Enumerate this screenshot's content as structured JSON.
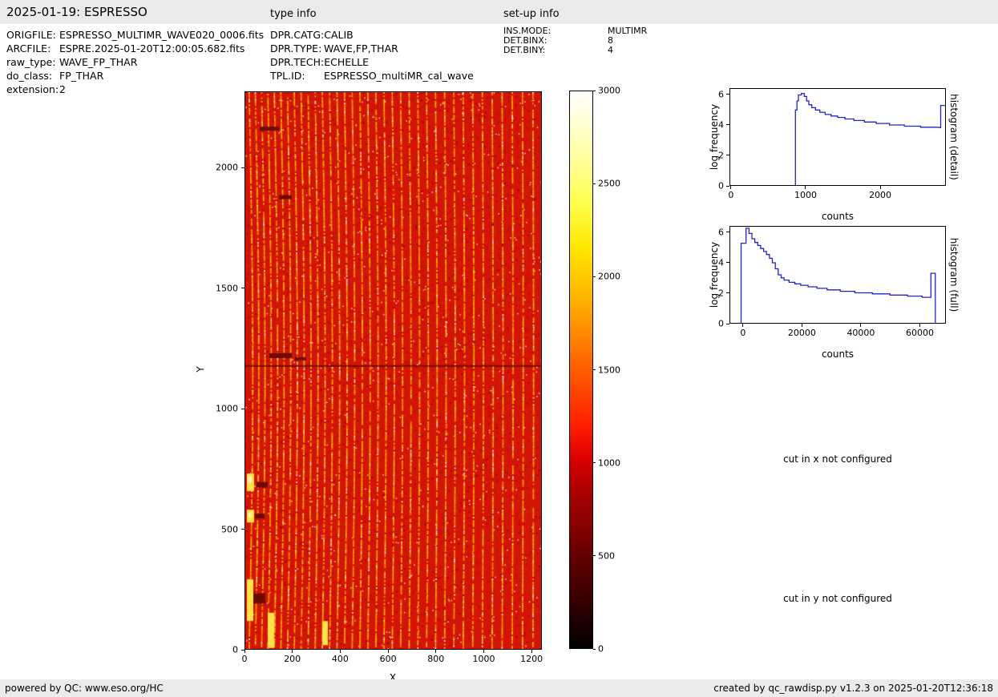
{
  "header": {
    "title": "2025-01-19: ESPRESSO",
    "type_info_label": "type info",
    "setup_info_label": "set-up info"
  },
  "metadata": {
    "file_info": [
      {
        "label": "ORIGFILE:",
        "value": "ESPRESSO_MULTIMR_WAVE020_0006.fits"
      },
      {
        "label": "ARCFILE:",
        "value": "ESPRE.2025-01-20T12:00:05.682.fits"
      },
      {
        "label": "raw_type:",
        "value": "WAVE_FP_THAR"
      },
      {
        "label": "do_class:",
        "value": "FP_THAR"
      },
      {
        "label": "extension:",
        "value": "2"
      }
    ],
    "type_info": [
      {
        "label": "DPR.CATG:",
        "value": "CALIB"
      },
      {
        "label": "DPR.TYPE:",
        "value": "WAVE,FP,THAR"
      },
      {
        "label": "DPR.TECH:",
        "value": "ECHELLE"
      },
      {
        "label": "TPL.ID:",
        "value": "ESPRESSO_multiMR_cal_wave"
      }
    ],
    "setup_info": [
      {
        "label": "INS.MODE:",
        "value": "MULTIMR"
      },
      {
        "label": "DET.BINX:",
        "value": "8"
      },
      {
        "label": "DET.BINY:",
        "value": "4"
      }
    ]
  },
  "messages": {
    "cut_x": "cut in x not configured",
    "cut_y": "cut in y not configured"
  },
  "footer": {
    "left": "powered by QC: www.eso.org/HC",
    "right": "created by qc_rawdisp.py v1.2.3 on 2025-01-20T12:36:18"
  },
  "chart_data": [
    {
      "type": "heatmap",
      "name": "raw-detector-image",
      "description": "ESPRESSO FP/ThAr raw echelle frame: ~38 bright curved vertical orders (yellow/white fringes) on saturated red background, dark bad-column blemishes at left, dark horizontal row near y=1180, hot colormap",
      "xlabel": "X",
      "ylabel": "Y",
      "x_ticks": [
        0,
        200,
        400,
        600,
        800,
        1000,
        1200
      ],
      "y_ticks": [
        0,
        500,
        1000,
        1500,
        2000
      ],
      "x_range": [
        0,
        1243
      ],
      "y_range": [
        0,
        2316
      ],
      "colormap": "hot",
      "colorbar_ticks": [
        0,
        500,
        1000,
        1500,
        2000,
        2500,
        3000
      ],
      "colorbar_range": [
        0,
        3000
      ],
      "base_color": "#d31505",
      "stripe_color": "#ffd800"
    },
    {
      "type": "line",
      "title": "histogram (detail)",
      "xlabel": "counts",
      "ylabel": "log frequency",
      "x_ticks": [
        0,
        1000,
        2000
      ],
      "y_ticks": [
        0,
        2,
        4,
        6
      ],
      "x_range": [
        -20,
        2880
      ],
      "y_range": [
        0,
        6.4
      ],
      "line_color": "#2222cc",
      "series": [
        {
          "name": "log-frequency",
          "points": [
            [
              860,
              0
            ],
            [
              860,
              5.0
            ],
            [
              880,
              5.0
            ],
            [
              880,
              5.6
            ],
            [
              900,
              5.6
            ],
            [
              900,
              6.0
            ],
            [
              940,
              6.0
            ],
            [
              940,
              6.1
            ],
            [
              980,
              6.1
            ],
            [
              980,
              5.9
            ],
            [
              1010,
              5.9
            ],
            [
              1010,
              5.6
            ],
            [
              1040,
              5.6
            ],
            [
              1040,
              5.35
            ],
            [
              1080,
              5.35
            ],
            [
              1080,
              5.15
            ],
            [
              1130,
              5.15
            ],
            [
              1130,
              5.0
            ],
            [
              1190,
              5.0
            ],
            [
              1190,
              4.85
            ],
            [
              1260,
              4.85
            ],
            [
              1260,
              4.7
            ],
            [
              1340,
              4.7
            ],
            [
              1340,
              4.6
            ],
            [
              1430,
              4.6
            ],
            [
              1430,
              4.5
            ],
            [
              1530,
              4.5
            ],
            [
              1530,
              4.4
            ],
            [
              1650,
              4.4
            ],
            [
              1650,
              4.3
            ],
            [
              1790,
              4.3
            ],
            [
              1790,
              4.2
            ],
            [
              1950,
              4.2
            ],
            [
              1950,
              4.1
            ],
            [
              2130,
              4.1
            ],
            [
              2130,
              4.0
            ],
            [
              2330,
              4.0
            ],
            [
              2330,
              3.92
            ],
            [
              2550,
              3.92
            ],
            [
              2550,
              3.85
            ],
            [
              2780,
              3.85
            ],
            [
              2820,
              3.82
            ],
            [
              2820,
              5.3
            ],
            [
              2880,
              5.3
            ]
          ]
        }
      ]
    },
    {
      "type": "line",
      "title": "histogram (full)",
      "xlabel": "counts",
      "ylabel": "log frequency",
      "x_ticks": [
        0,
        20000,
        40000,
        60000
      ],
      "y_ticks": [
        0,
        2,
        4,
        6
      ],
      "x_range": [
        -4600,
        68850
      ],
      "y_range": [
        0,
        6.4
      ],
      "line_color": "#2222cc",
      "series": [
        {
          "name": "log-frequency",
          "points": [
            [
              -900,
              0
            ],
            [
              -900,
              5.3
            ],
            [
              800,
              5.3
            ],
            [
              800,
              6.3
            ],
            [
              1800,
              6.3
            ],
            [
              1800,
              5.95
            ],
            [
              2800,
              5.95
            ],
            [
              2800,
              5.6
            ],
            [
              3800,
              5.6
            ],
            [
              3800,
              5.35
            ],
            [
              4800,
              5.35
            ],
            [
              4800,
              5.15
            ],
            [
              5800,
              5.15
            ],
            [
              5800,
              4.95
            ],
            [
              6800,
              4.95
            ],
            [
              6800,
              4.75
            ],
            [
              7800,
              4.75
            ],
            [
              7800,
              4.55
            ],
            [
              8800,
              4.55
            ],
            [
              8800,
              4.3
            ],
            [
              9800,
              4.3
            ],
            [
              9800,
              4.0
            ],
            [
              10800,
              4.0
            ],
            [
              10800,
              3.6
            ],
            [
              11800,
              3.6
            ],
            [
              11800,
              3.2
            ],
            [
              12800,
              3.2
            ],
            [
              12800,
              3.0
            ],
            [
              13800,
              3.0
            ],
            [
              13800,
              2.85
            ],
            [
              15500,
              2.85
            ],
            [
              15500,
              2.7
            ],
            [
              17500,
              2.7
            ],
            [
              17500,
              2.6
            ],
            [
              19500,
              2.6
            ],
            [
              19500,
              2.5
            ],
            [
              22000,
              2.5
            ],
            [
              22000,
              2.4
            ],
            [
              25000,
              2.4
            ],
            [
              25000,
              2.3
            ],
            [
              28500,
              2.3
            ],
            [
              28500,
              2.2
            ],
            [
              33000,
              2.2
            ],
            [
              33000,
              2.1
            ],
            [
              38000,
              2.1
            ],
            [
              38000,
              2.0
            ],
            [
              44000,
              2.0
            ],
            [
              44000,
              1.93
            ],
            [
              50000,
              1.93
            ],
            [
              50000,
              1.85
            ],
            [
              56000,
              1.85
            ],
            [
              56000,
              1.78
            ],
            [
              61000,
              1.78
            ],
            [
              61000,
              1.7
            ],
            [
              64000,
              1.7
            ],
            [
              64000,
              3.3
            ],
            [
              65500,
              3.3
            ],
            [
              65500,
              0
            ]
          ]
        }
      ]
    }
  ]
}
